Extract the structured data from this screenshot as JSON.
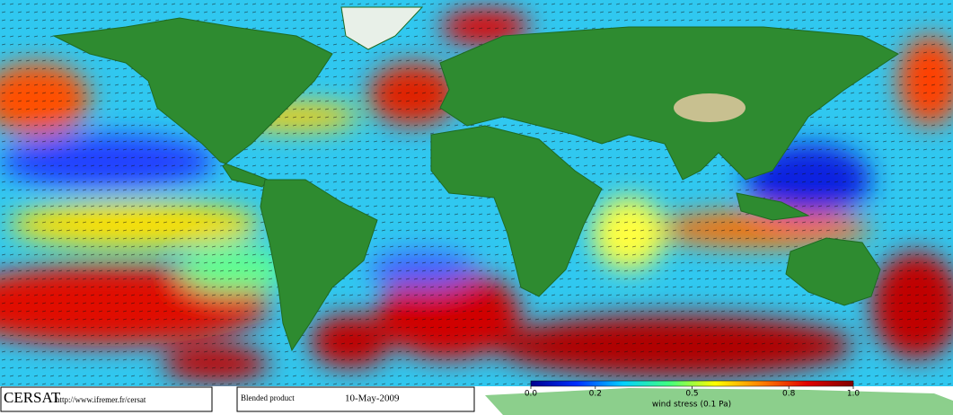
{
  "footer": {
    "logo": "CERSAT",
    "url": "http://www.ifremer.fr/cersat",
    "product": "Blended product",
    "date": "10-May-2009"
  },
  "colorbar": {
    "label": "wind stress (0.1 Pa)",
    "range": [
      0,
      1
    ],
    "ticks": [
      {
        "value": 0,
        "label": "0.0"
      },
      0.2,
      0.5,
      0.8,
      {
        "value": 1,
        "label": "1.0"
      }
    ],
    "colors": [
      "#00008f",
      "#0030ff",
      "#00d0ff",
      "#40ff80",
      "#ffff00",
      "#ff8000",
      "#e00000",
      "#800000"
    ]
  }
}
